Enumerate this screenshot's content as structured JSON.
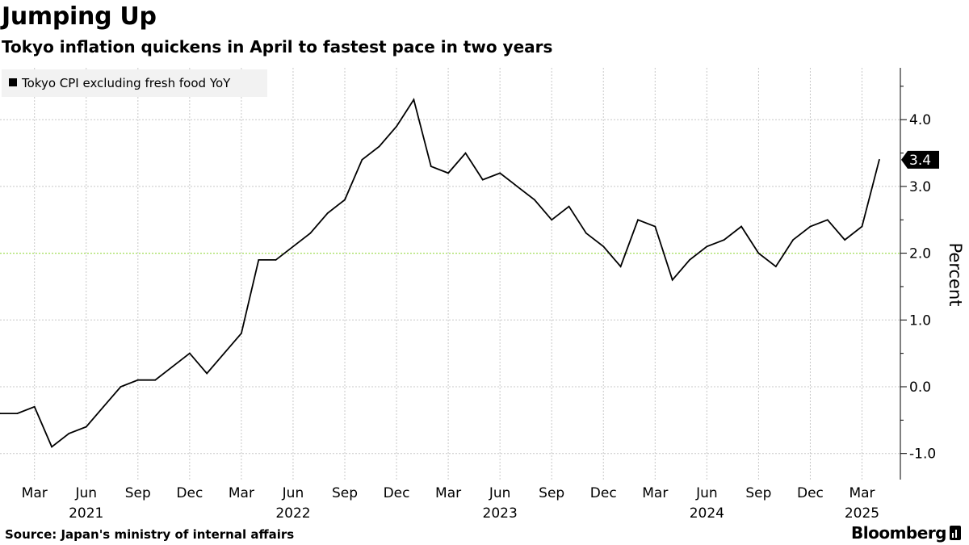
{
  "title": "Jumping Up",
  "subtitle": "Tokyo inflation quickens in April to fastest pace in two years",
  "source": "Source: Japan's ministry of internal affairs",
  "brand": "Bloomberg",
  "chart_data": {
    "type": "line",
    "legend": {
      "label": "Tokyo CPI excluding fresh food YoY",
      "placement": "top-left"
    },
    "ylabel": "Percent",
    "ylim": [
      -1.4,
      4.8
    ],
    "y_ticks": [
      -1.0,
      0.0,
      1.0,
      2.0,
      3.0,
      4.0
    ],
    "y_tick_labels": [
      "-1.0",
      "0.0",
      "1.0",
      "2.0",
      "3.0",
      "4.0"
    ],
    "reference_line": {
      "value": 2.0,
      "style": "dotted",
      "color": "#a6e05c"
    },
    "x_start": "2021-01",
    "x_end": "2025-05",
    "x_ticks": [
      {
        "month": "2021-03",
        "label": "Mar"
      },
      {
        "month": "2021-06",
        "label": "Jun"
      },
      {
        "month": "2021-09",
        "label": "Sep"
      },
      {
        "month": "2021-12",
        "label": "Dec"
      },
      {
        "month": "2022-03",
        "label": "Mar"
      },
      {
        "month": "2022-06",
        "label": "Jun"
      },
      {
        "month": "2022-09",
        "label": "Sep"
      },
      {
        "month": "2022-12",
        "label": "Dec"
      },
      {
        "month": "2023-03",
        "label": "Mar"
      },
      {
        "month": "2023-06",
        "label": "Jun"
      },
      {
        "month": "2023-09",
        "label": "Sep"
      },
      {
        "month": "2023-12",
        "label": "Dec"
      },
      {
        "month": "2024-03",
        "label": "Mar"
      },
      {
        "month": "2024-06",
        "label": "Jun"
      },
      {
        "month": "2024-09",
        "label": "Sep"
      },
      {
        "month": "2024-12",
        "label": "Dec"
      },
      {
        "month": "2025-03",
        "label": "Mar"
      }
    ],
    "year_labels": [
      {
        "month": "2021-06",
        "label": "2021"
      },
      {
        "month": "2022-06",
        "label": "2022"
      },
      {
        "month": "2023-06",
        "label": "2023"
      },
      {
        "month": "2024-06",
        "label": "2024"
      },
      {
        "month": "2025-03",
        "label": "2025"
      }
    ],
    "last_value_label": "3.4",
    "colors": {
      "line": "#000000",
      "grid": "#c8c8c8",
      "legend_bg": "#f2f2f2",
      "badge": "#000000"
    },
    "series": [
      {
        "name": "Tokyo CPI excluding fresh food YoY",
        "x": [
          "2021-01",
          "2021-02",
          "2021-03",
          "2021-04",
          "2021-05",
          "2021-06",
          "2021-07",
          "2021-08",
          "2021-09",
          "2021-10",
          "2021-11",
          "2021-12",
          "2022-01",
          "2022-02",
          "2022-03",
          "2022-04",
          "2022-05",
          "2022-06",
          "2022-07",
          "2022-08",
          "2022-09",
          "2022-10",
          "2022-11",
          "2022-12",
          "2023-01",
          "2023-02",
          "2023-03",
          "2023-04",
          "2023-05",
          "2023-06",
          "2023-07",
          "2023-08",
          "2023-09",
          "2023-10",
          "2023-11",
          "2023-12",
          "2024-01",
          "2024-02",
          "2024-03",
          "2024-04",
          "2024-05",
          "2024-06",
          "2024-07",
          "2024-08",
          "2024-09",
          "2024-10",
          "2024-11",
          "2024-12",
          "2025-01",
          "2025-02",
          "2025-03",
          "2025-04"
        ],
        "y": [
          -0.4,
          -0.4,
          -0.3,
          -0.9,
          -0.7,
          -0.6,
          -0.3,
          0.0,
          0.1,
          0.1,
          0.3,
          0.5,
          0.2,
          0.5,
          0.8,
          1.9,
          1.9,
          2.1,
          2.3,
          2.6,
          2.8,
          3.4,
          3.6,
          3.9,
          4.3,
          3.3,
          3.2,
          3.5,
          3.1,
          3.2,
          3.0,
          2.8,
          2.5,
          2.7,
          2.3,
          2.1,
          1.8,
          2.5,
          2.4,
          1.6,
          1.9,
          2.1,
          2.2,
          2.4,
          2.0,
          1.8,
          2.2,
          2.4,
          2.5,
          2.2,
          2.4,
          3.4
        ]
      }
    ]
  }
}
